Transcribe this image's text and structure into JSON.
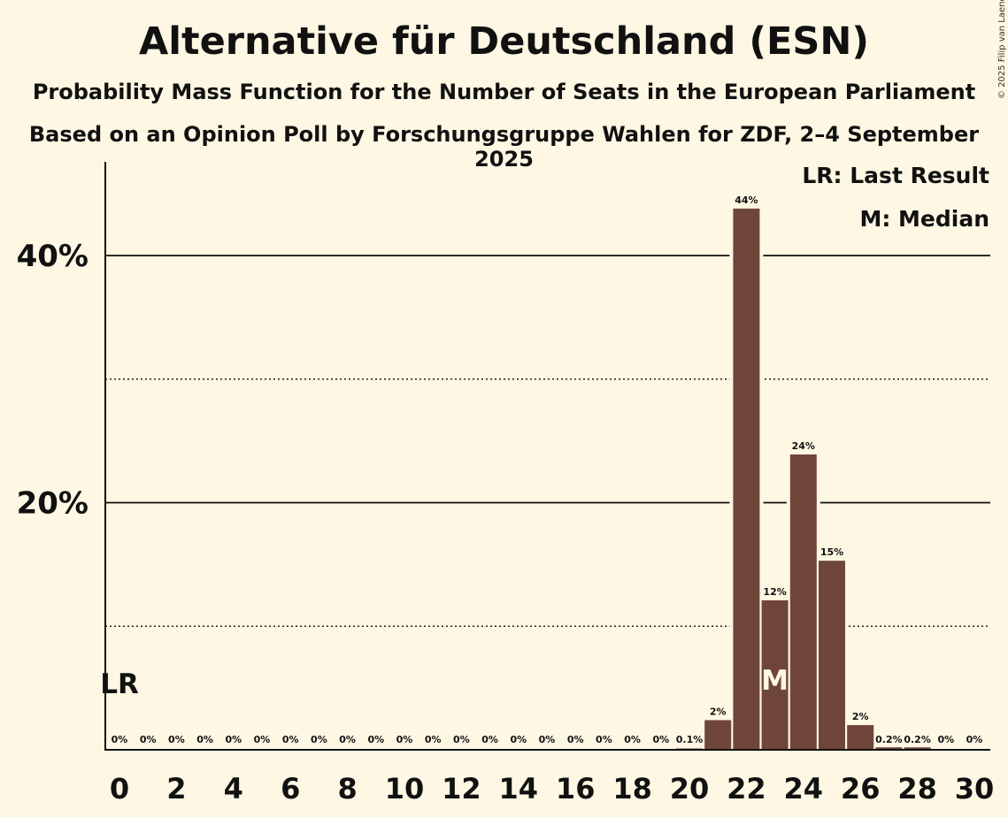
{
  "title": "Alternative für Deutschland (ESN)",
  "subtitle1": "Probability Mass Function for the Number of Seats in the European Parliament",
  "subtitle2": "Based on an Opinion Poll by Forschungsgruppe Wahlen for ZDF, 2–4 September 2025",
  "copyright": "© 2025 Filip van Laenen",
  "legend": {
    "last_result": "LR: Last Result",
    "median": "M: Median"
  },
  "colors": {
    "background": "#fdf7e3",
    "bar": "#6f453a",
    "median_marker": "#fdf7e3",
    "text": "#111111"
  },
  "chart_data": {
    "type": "bar",
    "x": [
      0,
      1,
      2,
      3,
      4,
      5,
      6,
      7,
      8,
      9,
      10,
      11,
      12,
      13,
      14,
      15,
      16,
      17,
      18,
      19,
      20,
      21,
      22,
      23,
      24,
      25,
      26,
      27,
      28,
      29,
      30
    ],
    "values": [
      0,
      0,
      0,
      0,
      0,
      0,
      0,
      0,
      0,
      0,
      0,
      0,
      0,
      0,
      0,
      0,
      0,
      0,
      0,
      0,
      0.1,
      2.4,
      43.8,
      12.1,
      23.9,
      15.3,
      2.0,
      0.2,
      0.2,
      0,
      0
    ],
    "data_labels": [
      "0%",
      "0%",
      "0%",
      "0%",
      "0%",
      "0%",
      "0%",
      "0%",
      "0%",
      "0%",
      "0%",
      "0%",
      "0%",
      "0%",
      "0%",
      "0%",
      "0%",
      "0%",
      "0%",
      "0%",
      "0.1%",
      "2%",
      "44%",
      "12%",
      "24%",
      "15%",
      "2%",
      "0.2%",
      "0.2%",
      "0%",
      "0%"
    ],
    "x_tick_labels": [
      "0",
      "2",
      "4",
      "6",
      "8",
      "10",
      "12",
      "14",
      "16",
      "18",
      "20",
      "22",
      "24",
      "26",
      "28",
      "30"
    ],
    "y_tick_labels": [
      "20%",
      "40%"
    ],
    "ylim": [
      0,
      48
    ],
    "grid_solid": [
      20,
      40
    ],
    "grid_dotted": [
      10,
      30
    ],
    "last_result_seat": 0,
    "last_result_label": "LR",
    "median_seat": 23,
    "median_label": "M",
    "xlabel": "",
    "ylabel": ""
  }
}
